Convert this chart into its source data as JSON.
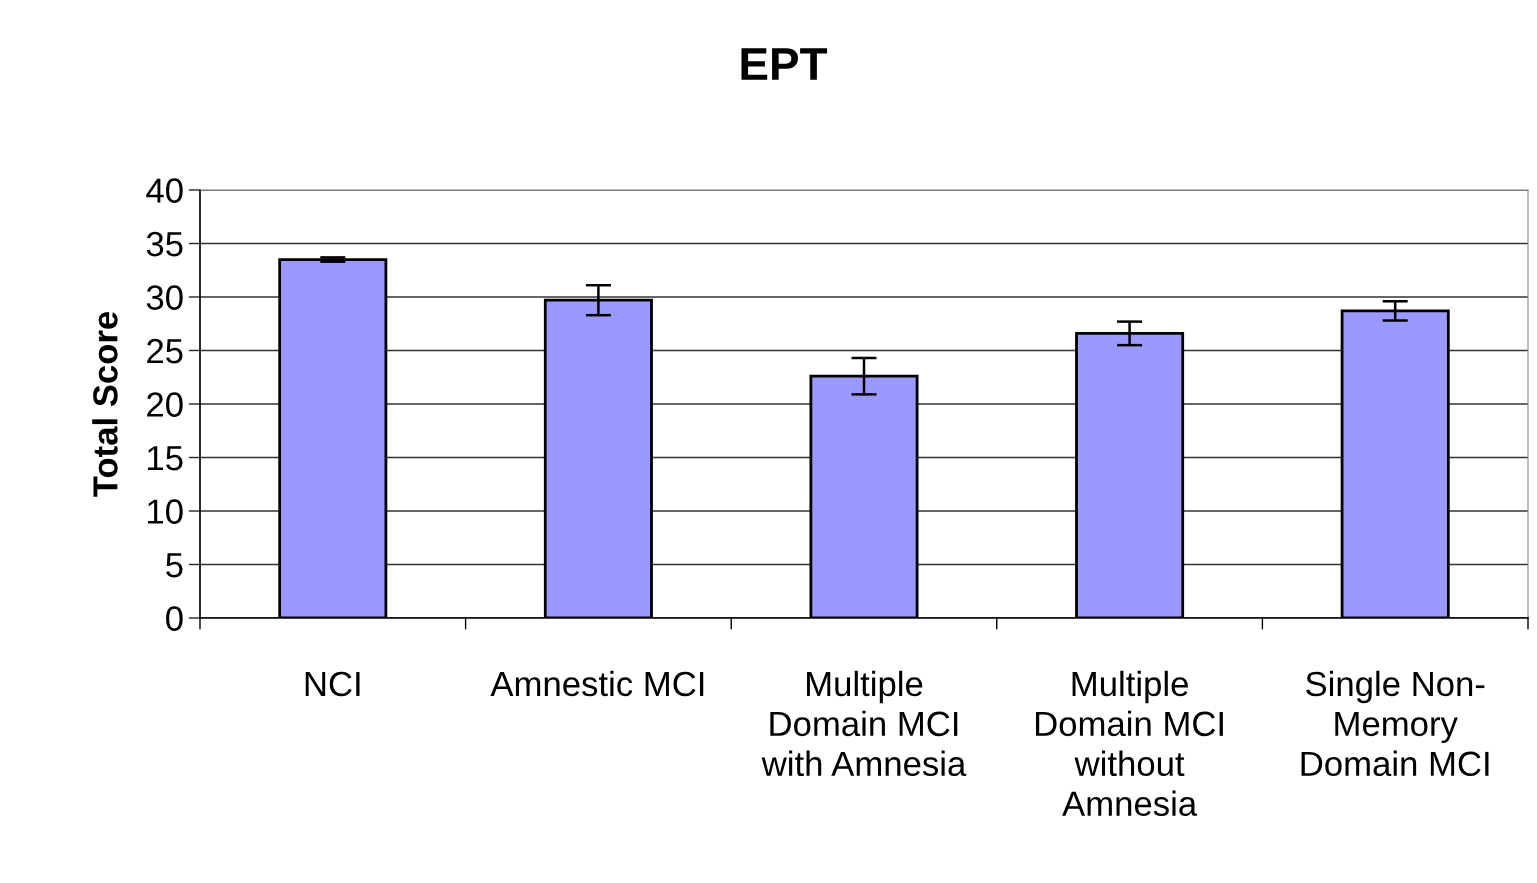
{
  "chart_data": {
    "type": "bar",
    "title": "EPT",
    "ylabel": "Total Score",
    "categories": [
      "NCI",
      "Amnestic MCI",
      "Multiple\nDomain MCI\nwith Amnesia",
      "Multiple\nDomain MCI\nwithout\nAmnesia",
      "Single Non-\nMemory\nDomain MCI"
    ],
    "values": [
      33.5,
      29.7,
      22.6,
      26.6,
      28.7
    ],
    "errors": [
      0.2,
      1.4,
      1.7,
      1.1,
      0.9
    ],
    "color": "#9999ff",
    "ylim": [
      0,
      40
    ],
    "yticks": [
      0,
      5,
      10,
      15,
      20,
      25,
      30,
      35,
      40
    ],
    "grid": "y"
  }
}
